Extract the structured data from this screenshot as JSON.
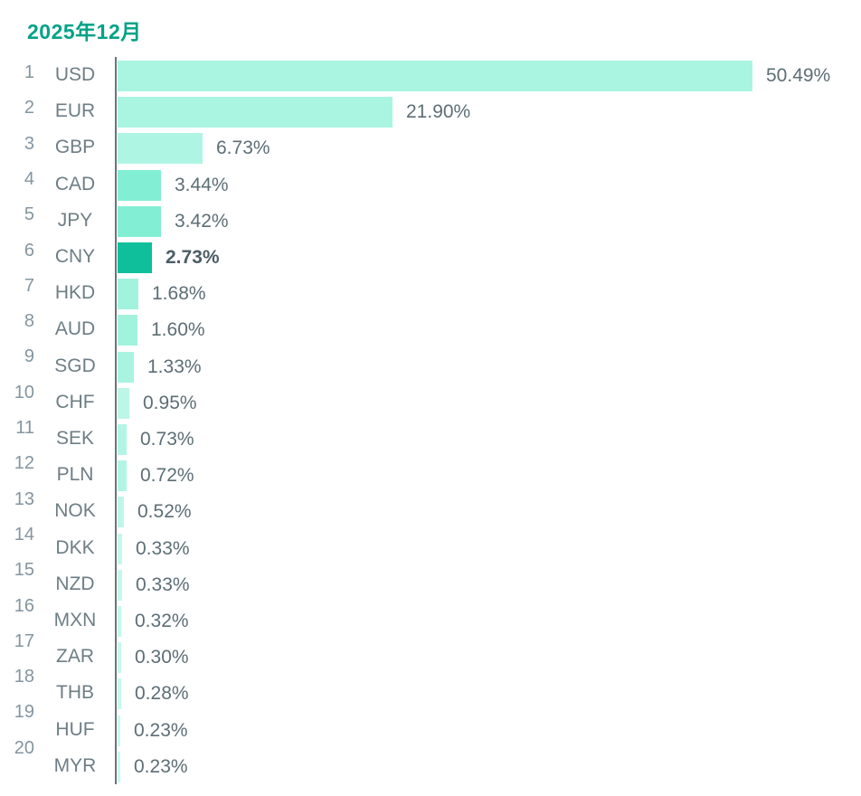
{
  "chart_data": {
    "type": "bar",
    "orientation": "horizontal",
    "title": "2025年12月",
    "unit": "%",
    "xlim": [
      0,
      50.49
    ],
    "grid": false,
    "legend": null,
    "highlight_category": "CNY",
    "categories": [
      "USD",
      "EUR",
      "GBP",
      "CAD",
      "JPY",
      "CNY",
      "HKD",
      "AUD",
      "SGD",
      "CHF",
      "SEK",
      "PLN",
      "NOK",
      "DKK",
      "NZD",
      "MXN",
      "ZAR",
      "THB",
      "HUF",
      "MYR"
    ],
    "values": [
      50.49,
      21.9,
      6.73,
      3.44,
      3.42,
      2.73,
      1.68,
      1.6,
      1.33,
      0.95,
      0.73,
      0.72,
      0.52,
      0.33,
      0.33,
      0.32,
      0.3,
      0.28,
      0.23,
      0.23
    ],
    "rows": [
      {
        "rank": 1,
        "code": "USD",
        "value": 50.49,
        "label": "50.49%",
        "color": "#a9f5e1",
        "emphasis": false
      },
      {
        "rank": 2,
        "code": "EUR",
        "value": 21.9,
        "label": "21.90%",
        "color": "#a9f5e1",
        "emphasis": false
      },
      {
        "rank": 3,
        "code": "GBP",
        "value": 6.73,
        "label": "6.73%",
        "color": "#aef5e3",
        "emphasis": false
      },
      {
        "rank": 4,
        "code": "CAD",
        "value": 3.44,
        "label": "3.44%",
        "color": "#82efd4",
        "emphasis": false
      },
      {
        "rank": 5,
        "code": "JPY",
        "value": 3.42,
        "label": "3.42%",
        "color": "#82efd4",
        "emphasis": false
      },
      {
        "rank": 6,
        "code": "CNY",
        "value": 2.73,
        "label": "2.73%",
        "color": "#0fbf9c",
        "emphasis": true
      },
      {
        "rank": 7,
        "code": "HKD",
        "value": 1.68,
        "label": "1.68%",
        "color": "#a2f3de",
        "emphasis": false
      },
      {
        "rank": 8,
        "code": "AUD",
        "value": 1.6,
        "label": "1.60%",
        "color": "#a2f3de",
        "emphasis": false
      },
      {
        "rank": 9,
        "code": "SGD",
        "value": 1.33,
        "label": "1.33%",
        "color": "#a8f4e0",
        "emphasis": false
      },
      {
        "rank": 10,
        "code": "CHF",
        "value": 0.95,
        "label": "0.95%",
        "color": "#bbf6e7",
        "emphasis": false
      },
      {
        "rank": 11,
        "code": "SEK",
        "value": 0.73,
        "label": "0.73%",
        "color": "#b3f5e4",
        "emphasis": false
      },
      {
        "rank": 12,
        "code": "PLN",
        "value": 0.72,
        "label": "0.72%",
        "color": "#b3f5e4",
        "emphasis": false
      },
      {
        "rank": 13,
        "code": "NOK",
        "value": 0.52,
        "label": "0.52%",
        "color": "#bef7e9",
        "emphasis": false
      },
      {
        "rank": 14,
        "code": "DKK",
        "value": 0.33,
        "label": "0.33%",
        "color": "#c4f8eb",
        "emphasis": false
      },
      {
        "rank": 15,
        "code": "NZD",
        "value": 0.33,
        "label": "0.33%",
        "color": "#c4f8eb",
        "emphasis": false
      },
      {
        "rank": 16,
        "code": "MXN",
        "value": 0.32,
        "label": "0.32%",
        "color": "#c4f8eb",
        "emphasis": false
      },
      {
        "rank": 17,
        "code": "ZAR",
        "value": 0.3,
        "label": "0.30%",
        "color": "#c7f8ec",
        "emphasis": false
      },
      {
        "rank": 18,
        "code": "THB",
        "value": 0.28,
        "label": "0.28%",
        "color": "#c7f8ec",
        "emphasis": false
      },
      {
        "rank": 19,
        "code": "HUF",
        "value": 0.23,
        "label": "0.23%",
        "color": "#caf9ee",
        "emphasis": false
      },
      {
        "rank": 20,
        "code": "MYR",
        "value": 0.23,
        "label": "0.23%",
        "color": "#caf9ee",
        "emphasis": false
      }
    ]
  },
  "colors": {
    "title": "#00a287",
    "axis": "#6a7478",
    "rank_text": "#8495a0",
    "code_text": "#6e7e85",
    "value_text": "#5d6e75",
    "value_text_emphasis": "#4c5d64",
    "background": "#ffffff"
  }
}
